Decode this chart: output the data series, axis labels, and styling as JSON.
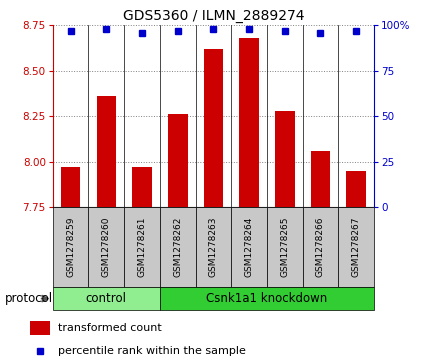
{
  "title": "GDS5360 / ILMN_2889274",
  "samples": [
    "GSM1278259",
    "GSM1278260",
    "GSM1278261",
    "GSM1278262",
    "GSM1278263",
    "GSM1278264",
    "GSM1278265",
    "GSM1278266",
    "GSM1278267"
  ],
  "bar_values": [
    7.97,
    8.36,
    7.97,
    8.26,
    8.62,
    8.68,
    8.28,
    8.06,
    7.95
  ],
  "percentile_values": [
    97,
    98,
    96,
    97,
    98,
    98,
    97,
    96,
    97
  ],
  "ylim_left": [
    7.75,
    8.75
  ],
  "ylim_right": [
    0,
    100
  ],
  "yticks_left": [
    7.75,
    8.0,
    8.25,
    8.5,
    8.75
  ],
  "yticks_right": [
    0,
    25,
    50,
    75,
    100
  ],
  "bar_color": "#cc0000",
  "dot_color": "#0000cc",
  "control_label": "control",
  "knockdown_label": "Csnk1a1 knockdown",
  "protocol_label": "protocol",
  "control_count": 3,
  "knockdown_count": 6,
  "control_bg": "#90ee90",
  "knockdown_bg": "#32cd32",
  "sample_bg": "#c8c8c8",
  "legend_bar_label": "transformed count",
  "legend_dot_label": "percentile rank within the sample",
  "bar_width": 0.55,
  "title_fontsize": 10,
  "tick_fontsize": 7.5,
  "sample_fontsize": 6.5,
  "protocol_fontsize": 8.5,
  "legend_fontsize": 8
}
